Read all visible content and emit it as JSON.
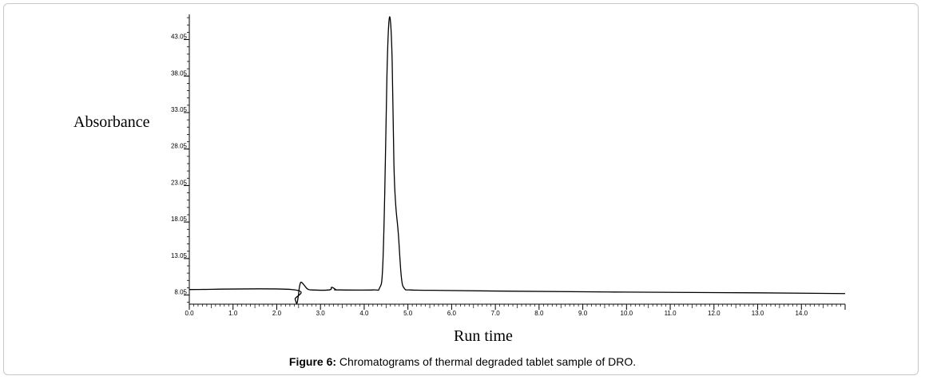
{
  "chart_data": {
    "type": "line",
    "title": "",
    "xlabel": "Run time",
    "ylabel": "Absorbance",
    "xlim": [
      0.0,
      15.0
    ],
    "ylim": [
      6.8,
      46.5
    ],
    "x_ticks": [
      0.0,
      1.0,
      2.0,
      3.0,
      4.0,
      5.0,
      6.0,
      7.0,
      8.0,
      9.0,
      10.0,
      11.0,
      12.0,
      13.0,
      14.0
    ],
    "x_tick_labels": [
      "0.0",
      "1.0",
      "2.0",
      "3.0",
      "4.0",
      "5.0",
      "6.0",
      "7.0",
      "8.0",
      "9.0",
      "10.0",
      "11.0",
      "12.0",
      "13.0",
      "14.0"
    ],
    "y_ticks": [
      8.05,
      13.05,
      18.05,
      23.05,
      28.05,
      33.05,
      38.05,
      43.05
    ],
    "y_tick_labels": [
      "8.05",
      "13.05",
      "18.05",
      "23.05",
      "28.05",
      "33.05",
      "38.05",
      "43.05"
    ],
    "grid": false,
    "series": [
      {
        "x": [
          0.0,
          2.35,
          2.42,
          2.46,
          2.49,
          2.52,
          2.55,
          2.6,
          2.7,
          2.8,
          3.2,
          3.25,
          3.3,
          3.35,
          3.4,
          4.2,
          4.35,
          4.42,
          4.47,
          4.52,
          4.56,
          4.6,
          4.64,
          4.68,
          4.72,
          4.78,
          4.85,
          4.92,
          5.05,
          5.5,
          7.0,
          10.0,
          13.0,
          15.0
        ],
        "y": [
          8.8,
          8.8,
          7.5,
          6.9,
          7.8,
          9.2,
          9.8,
          9.6,
          8.9,
          8.75,
          8.75,
          9.1,
          9.0,
          8.8,
          8.75,
          8.75,
          9.0,
          11.5,
          22.0,
          38.0,
          45.0,
          45.6,
          40.0,
          26.0,
          20.5,
          16.5,
          10.5,
          8.95,
          8.75,
          8.7,
          8.6,
          8.45,
          8.35,
          8.25
        ]
      }
    ]
  },
  "caption": {
    "label": "Figure 6:",
    "text": " Chromatograms of thermal degraded tablet sample of DRO."
  }
}
